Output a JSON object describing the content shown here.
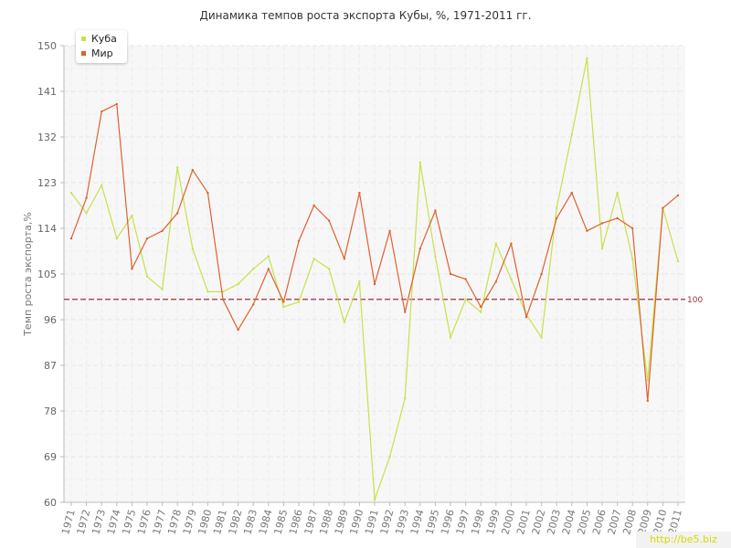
{
  "chart_data": {
    "type": "line",
    "title": "Динамика темпов роста экспорта Кубы, %, 1971-2011 гг.",
    "xlabel": "",
    "ylabel": "Темп роста экспорта,%",
    "ylim": [
      60,
      150
    ],
    "yticks": [
      "60",
      "69",
      "78",
      "87",
      "96",
      "105",
      "114",
      "123",
      "132",
      "141",
      "150"
    ],
    "categories": [
      "1971",
      "1972",
      "1973",
      "1974",
      "1975",
      "1976",
      "1977",
      "1978",
      "1979",
      "1980",
      "1981",
      "1982",
      "1983",
      "1984",
      "1985",
      "1986",
      "1987",
      "1988",
      "1989",
      "1990",
      "1991",
      "1992",
      "1993",
      "1994",
      "1995",
      "1996",
      "1997",
      "1998",
      "1999",
      "2000",
      "2001",
      "2002",
      "2003",
      "2004",
      "2005",
      "2006",
      "2007",
      "2008",
      "2009",
      "2010",
      "2011"
    ],
    "series": [
      {
        "name": "Куба",
        "color": "#c8e04a",
        "values": [
          121.0,
          117.0,
          122.5,
          112.0,
          116.5,
          104.5,
          102.0,
          126.0,
          110.0,
          101.5,
          101.5,
          103.0,
          106.0,
          108.5,
          98.5,
          99.5,
          108.0,
          106.0,
          95.5,
          103.5,
          60.5,
          69.0,
          80.5,
          127.0,
          108.5,
          92.5,
          100.0,
          97.5,
          111.0,
          104.0,
          97.0,
          92.5,
          118.0,
          132.5,
          147.5,
          110.0,
          121.0,
          108.0,
          84.0,
          118.0,
          107.5
        ]
      },
      {
        "name": "Мир",
        "color": "#e06030",
        "values": [
          112.0,
          120.0,
          137.0,
          138.5,
          106.0,
          112.0,
          113.5,
          117.0,
          125.5,
          121.0,
          100.0,
          94.0,
          99.0,
          106.0,
          99.5,
          111.5,
          118.5,
          115.5,
          108.0,
          121.0,
          103.0,
          113.5,
          97.5,
          110.0,
          117.5,
          105.0,
          104.0,
          98.5,
          103.5,
          111.0,
          96.5,
          105.0,
          116.0,
          121.0,
          113.5,
          115.0,
          116.0,
          114.0,
          80.0,
          118.0,
          120.5
        ]
      }
    ],
    "reference_line": {
      "value": 100,
      "label": "100",
      "color": "#9a3040"
    },
    "grid": true,
    "legend_placement": "top-left"
  },
  "watermark": "http://be5.biz"
}
